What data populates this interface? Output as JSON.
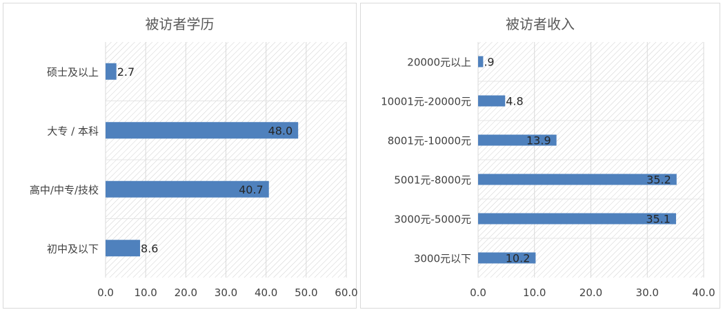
{
  "chart_data": [
    {
      "type": "bar",
      "orientation": "horizontal",
      "title": "被访者学历",
      "categories": [
        "硕士及以上",
        "大专 / 本科",
        "高中/中专/技校",
        "初中及以下"
      ],
      "values": [
        2.7,
        48.0,
        40.7,
        8.6
      ],
      "value_labels": [
        "2.7",
        "48.0",
        "40.7",
        "8.6"
      ],
      "xlim": [
        0,
        60
      ],
      "xticks": [
        "0.0",
        "10.0",
        "20.0",
        "30.0",
        "40.0",
        "50.0",
        "60.0"
      ],
      "xticks_values": [
        0,
        10,
        20,
        30,
        40,
        50,
        60
      ],
      "bar_color": "#4f81bd",
      "grid": "vertical",
      "background": "hatched",
      "xlabel": "",
      "ylabel": ""
    },
    {
      "type": "bar",
      "orientation": "horizontal",
      "title": "被访者收入",
      "categories": [
        "20000元以上",
        "10001元-20000元",
        "8001元-10000元",
        "5001元-8000元",
        "3000元-5000元",
        "3000元以下"
      ],
      "values": [
        0.9,
        4.8,
        13.9,
        35.2,
        35.1,
        10.2
      ],
      "value_labels": [
        ".9",
        "4.8",
        "13.9",
        "35.2",
        "35.1",
        "10.2"
      ],
      "xlim": [
        0,
        40
      ],
      "xticks": [
        "0.0",
        "10.0",
        "20.0",
        "30.0",
        "40.0"
      ],
      "xticks_values": [
        0,
        10,
        20,
        30,
        40
      ],
      "bar_color": "#4f81bd",
      "grid": "vertical",
      "background": "hatched",
      "xlabel": "",
      "ylabel": ""
    }
  ]
}
